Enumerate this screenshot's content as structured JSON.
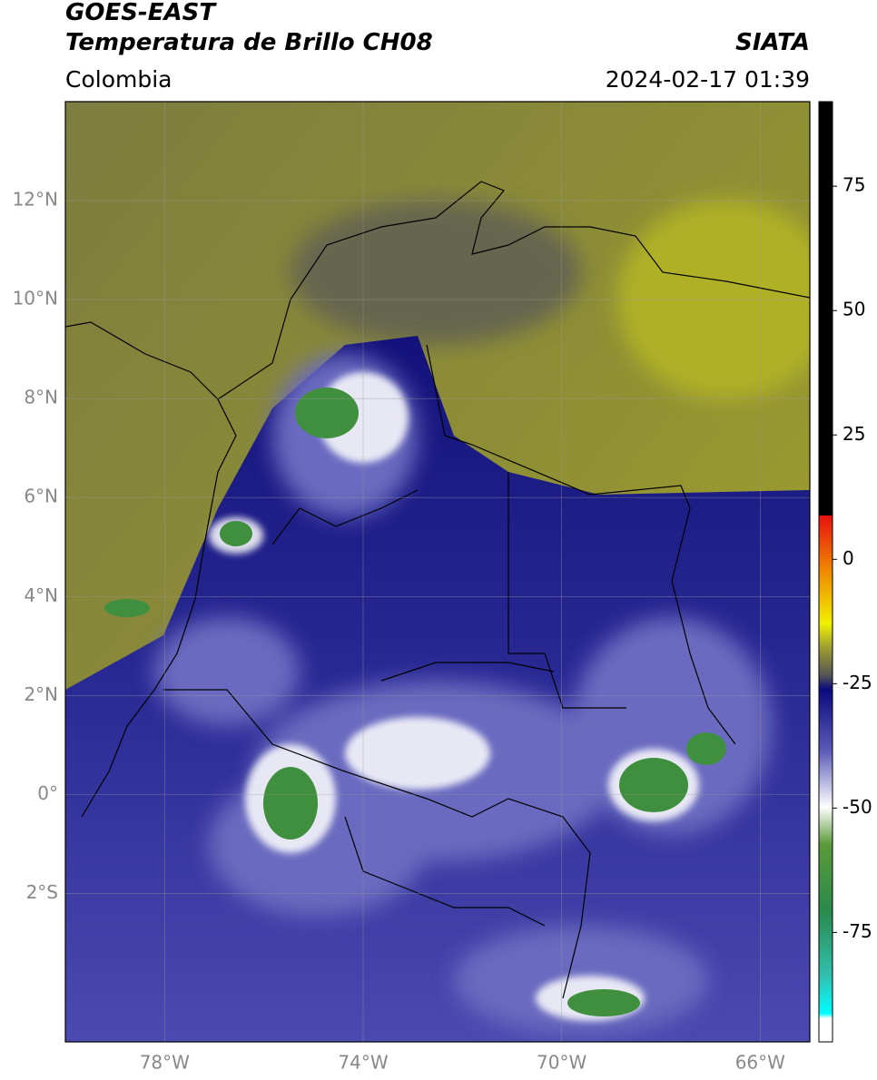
{
  "header": {
    "title": "GOES-EAST",
    "subtitle": "Temperatura de Brillo CH08",
    "source": "SIATA",
    "region": "Colombia",
    "datetime": "2024-02-17 01:39"
  },
  "map": {
    "lat_lim": [
      -5,
      14
    ],
    "lon_lim": [
      -80,
      -65
    ],
    "lat_ticks": [
      {
        "value": 12,
        "label": "12°N"
      },
      {
        "value": 10,
        "label": "10°N"
      },
      {
        "value": 8,
        "label": "8°N"
      },
      {
        "value": 6,
        "label": "6°N"
      },
      {
        "value": 4,
        "label": "4°N"
      },
      {
        "value": 2,
        "label": "2°N"
      },
      {
        "value": 0,
        "label": "0°"
      },
      {
        "value": -2,
        "label": "2°S"
      }
    ],
    "lon_ticks": [
      {
        "value": -78,
        "label": "78°W"
      },
      {
        "value": -74,
        "label": "74°W"
      },
      {
        "value": -70,
        "label": "70°W"
      },
      {
        "value": -66,
        "label": "66°W"
      }
    ]
  },
  "colorbar": {
    "lim": [
      -97,
      92
    ],
    "ticks": [
      75,
      50,
      25,
      0,
      -25,
      -50,
      -75
    ]
  }
}
